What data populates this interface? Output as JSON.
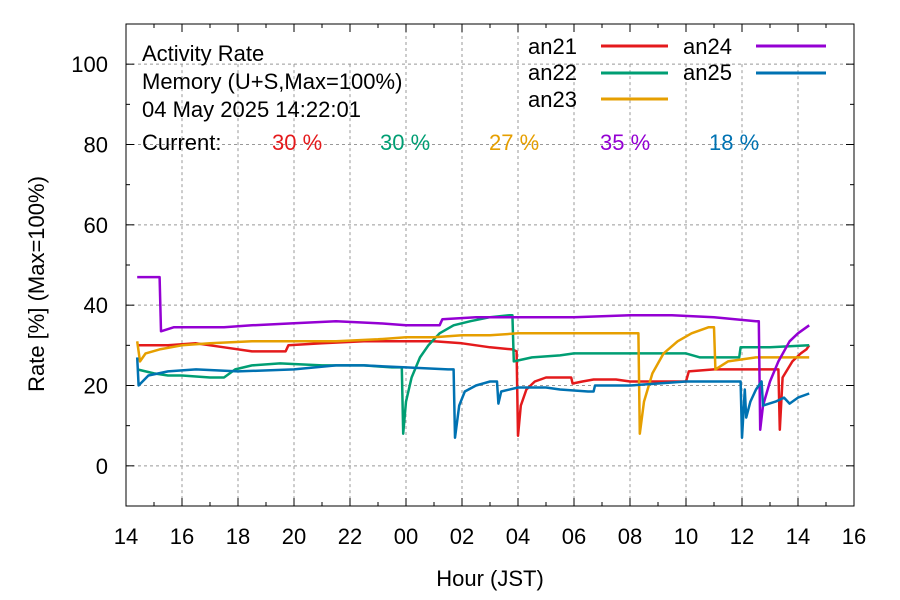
{
  "chart_data": {
    "type": "line",
    "title_lines": [
      "Activity Rate",
      "Memory (U+S,Max=100%)",
      "04 May 2025 14:22:01"
    ],
    "current_label": "Current:",
    "xlabel": "Hour (JST)",
    "ylabel": "Rate [%]  (Max=100%)",
    "xlim": [
      14,
      40
    ],
    "ylim": [
      -10,
      110
    ],
    "x_ticks": [
      {
        "v": 14,
        "label": "14"
      },
      {
        "v": 16,
        "label": "16"
      },
      {
        "v": 18,
        "label": "18"
      },
      {
        "v": 20,
        "label": "20"
      },
      {
        "v": 22,
        "label": "22"
      },
      {
        "v": 24,
        "label": "00"
      },
      {
        "v": 26,
        "label": "02"
      },
      {
        "v": 28,
        "label": "04"
      },
      {
        "v": 30,
        "label": "06"
      },
      {
        "v": 32,
        "label": "08"
      },
      {
        "v": 34,
        "label": "10"
      },
      {
        "v": 36,
        "label": "12"
      },
      {
        "v": 38,
        "label": "14"
      },
      {
        "v": 40,
        "label": "16"
      }
    ],
    "y_ticks": [
      {
        "v": 0,
        "label": "0"
      },
      {
        "v": 20,
        "label": "20"
      },
      {
        "v": 40,
        "label": "40"
      },
      {
        "v": 60,
        "label": "60"
      },
      {
        "v": 80,
        "label": "80"
      },
      {
        "v": 100,
        "label": "100"
      }
    ],
    "grid": true,
    "legend_position": "top-right",
    "series": [
      {
        "name": "an21",
        "color": "#e41a1c",
        "current": "30 %",
        "points": [
          [
            14.4,
            30
          ],
          [
            15.5,
            30
          ],
          [
            16.5,
            30.5
          ],
          [
            17.5,
            29.5
          ],
          [
            18.5,
            28.5
          ],
          [
            19.7,
            28.5
          ],
          [
            19.8,
            30
          ],
          [
            21,
            30.5
          ],
          [
            22.5,
            31
          ],
          [
            24,
            31
          ],
          [
            25,
            31
          ],
          [
            26,
            30.5
          ],
          [
            27,
            29.5
          ],
          [
            27.8,
            29
          ],
          [
            27.95,
            28.5
          ],
          [
            28.0,
            7.5
          ],
          [
            28.1,
            15
          ],
          [
            28.3,
            19
          ],
          [
            28.6,
            21
          ],
          [
            29,
            22
          ],
          [
            29.5,
            22
          ],
          [
            29.9,
            22
          ],
          [
            29.95,
            20.5
          ],
          [
            30.3,
            21
          ],
          [
            30.7,
            21.5
          ],
          [
            31.5,
            21.5
          ],
          [
            32,
            21
          ],
          [
            33,
            21
          ],
          [
            34,
            21
          ],
          [
            34.1,
            23.5
          ],
          [
            35,
            24
          ],
          [
            36,
            24
          ],
          [
            37,
            24
          ],
          [
            37.3,
            24
          ],
          [
            37.35,
            9
          ],
          [
            37.45,
            22
          ],
          [
            37.8,
            26
          ],
          [
            38.1,
            28
          ],
          [
            38.3,
            29
          ],
          [
            38.4,
            30
          ]
        ]
      },
      {
        "name": "an22",
        "color": "#009e73",
        "current": "30 %",
        "points": [
          [
            14.4,
            24
          ],
          [
            15,
            23
          ],
          [
            15.5,
            22.5
          ],
          [
            16,
            22.5
          ],
          [
            17,
            22
          ],
          [
            17.5,
            22
          ],
          [
            17.9,
            24
          ],
          [
            18.5,
            25
          ],
          [
            19.5,
            25.5
          ],
          [
            21,
            25
          ],
          [
            22.5,
            25
          ],
          [
            23.5,
            24.5
          ],
          [
            23.85,
            24.5
          ],
          [
            23.9,
            8
          ],
          [
            24.0,
            16
          ],
          [
            24.2,
            22
          ],
          [
            24.5,
            27
          ],
          [
            24.8,
            30
          ],
          [
            25.2,
            33
          ],
          [
            25.7,
            35
          ],
          [
            26.3,
            36
          ],
          [
            27,
            37
          ],
          [
            27.7,
            37.5
          ],
          [
            27.8,
            37.5
          ],
          [
            27.85,
            26
          ],
          [
            28.5,
            27
          ],
          [
            29.5,
            27.5
          ],
          [
            30,
            28
          ],
          [
            31,
            28
          ],
          [
            32,
            28
          ],
          [
            33,
            28
          ],
          [
            34,
            28
          ],
          [
            34.5,
            27
          ],
          [
            35,
            27
          ],
          [
            35.9,
            27
          ],
          [
            35.95,
            29.5
          ],
          [
            37,
            29.5
          ],
          [
            38.4,
            30
          ]
        ]
      },
      {
        "name": "an23",
        "color": "#e69f00",
        "current": "27 %",
        "points": [
          [
            14.4,
            31
          ],
          [
            14.5,
            26
          ],
          [
            14.7,
            28
          ],
          [
            15.2,
            29
          ],
          [
            16,
            30
          ],
          [
            17,
            30.5
          ],
          [
            18.5,
            31
          ],
          [
            20,
            31
          ],
          [
            21.5,
            31
          ],
          [
            23,
            31.5
          ],
          [
            24,
            32
          ],
          [
            25,
            32
          ],
          [
            26,
            32.5
          ],
          [
            27,
            32.5
          ],
          [
            28,
            33
          ],
          [
            29,
            33
          ],
          [
            30.5,
            33
          ],
          [
            32,
            33
          ],
          [
            32.3,
            33
          ],
          [
            32.35,
            8
          ],
          [
            32.5,
            16
          ],
          [
            32.8,
            23
          ],
          [
            33.2,
            28
          ],
          [
            33.7,
            31
          ],
          [
            34.2,
            33
          ],
          [
            34.8,
            34.5
          ],
          [
            35.0,
            34.5
          ],
          [
            35.05,
            24
          ],
          [
            35.5,
            26
          ],
          [
            36.5,
            27
          ],
          [
            37.5,
            27
          ],
          [
            38.4,
            27
          ]
        ]
      },
      {
        "name": "an24",
        "color": "#9400d3",
        "current": "35 %",
        "points": [
          [
            14.4,
            47
          ],
          [
            15.2,
            47
          ],
          [
            15.25,
            33.5
          ],
          [
            15.7,
            34.5
          ],
          [
            16.5,
            34.5
          ],
          [
            17.5,
            34.5
          ],
          [
            18.5,
            35
          ],
          [
            20,
            35.5
          ],
          [
            21.5,
            36
          ],
          [
            23,
            35.5
          ],
          [
            24,
            35
          ],
          [
            25,
            35
          ],
          [
            25.2,
            35
          ],
          [
            25.3,
            36.5
          ],
          [
            26.5,
            37
          ],
          [
            28,
            37
          ],
          [
            30,
            37
          ],
          [
            32,
            37.5
          ],
          [
            33.5,
            37.5
          ],
          [
            35,
            37
          ],
          [
            36.5,
            36
          ],
          [
            36.6,
            36
          ],
          [
            36.65,
            9
          ],
          [
            36.75,
            15
          ],
          [
            37,
            21
          ],
          [
            37.3,
            26
          ],
          [
            37.7,
            31
          ],
          [
            38.0,
            33
          ],
          [
            38.2,
            34
          ],
          [
            38.4,
            35
          ]
        ]
      },
      {
        "name": "an25",
        "color": "#0072b2",
        "current": "18 %",
        "points": [
          [
            14.4,
            27
          ],
          [
            14.45,
            20
          ],
          [
            14.8,
            22.5
          ],
          [
            15.5,
            23.5
          ],
          [
            16.5,
            24
          ],
          [
            18,
            23.5
          ],
          [
            20,
            24
          ],
          [
            21.5,
            25
          ],
          [
            22.5,
            25
          ],
          [
            24,
            24.5
          ],
          [
            25.5,
            24
          ],
          [
            25.7,
            24
          ],
          [
            25.75,
            7
          ],
          [
            25.9,
            15
          ],
          [
            26.1,
            18.5
          ],
          [
            26.5,
            20
          ],
          [
            27,
            21
          ],
          [
            27.25,
            21
          ],
          [
            27.3,
            15.5
          ],
          [
            27.4,
            18.5
          ],
          [
            28,
            19.5
          ],
          [
            29,
            19.5
          ],
          [
            29.5,
            19
          ],
          [
            30.5,
            18.5
          ],
          [
            30.7,
            18.5
          ],
          [
            30.75,
            20
          ],
          [
            32,
            20
          ],
          [
            33,
            20.5
          ],
          [
            34,
            21
          ],
          [
            35,
            21
          ],
          [
            35.95,
            21
          ],
          [
            36.0,
            7
          ],
          [
            36.1,
            19
          ],
          [
            36.15,
            12
          ],
          [
            36.3,
            16
          ],
          [
            36.5,
            19
          ],
          [
            36.7,
            21
          ],
          [
            36.75,
            15
          ],
          [
            37.2,
            16
          ],
          [
            37.5,
            17
          ],
          [
            37.7,
            15.5
          ],
          [
            38.0,
            17
          ],
          [
            38.4,
            18
          ]
        ]
      }
    ]
  }
}
